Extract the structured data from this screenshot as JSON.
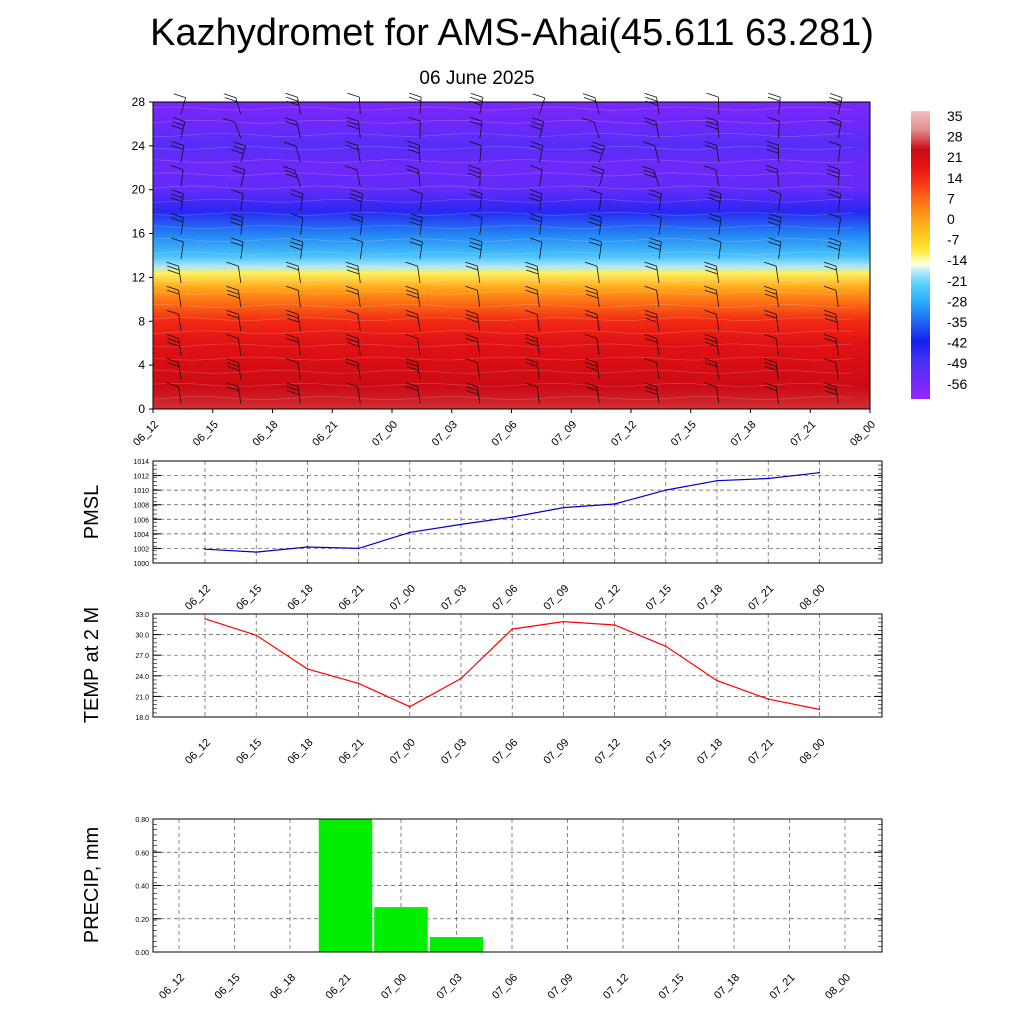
{
  "title": "Kazhydromet for AMS-Ahai(45.611 63.281)",
  "subtitle": "06 June 2025",
  "time_labels": [
    "06_12",
    "06_15",
    "06_18",
    "06_21",
    "07_00",
    "07_03",
    "07_06",
    "07_09",
    "07_12",
    "07_15",
    "07_18",
    "07_21",
    "08_00"
  ],
  "chart_data": [
    {
      "type": "heatmap",
      "title": "",
      "xlabel": "",
      "ylabel": "",
      "y_ticks": [
        0,
        4,
        8,
        12,
        16,
        20,
        24,
        28
      ],
      "ylim": [
        0,
        28
      ],
      "colorbar_labels": [
        35,
        28,
        21,
        14,
        7,
        0,
        -7,
        -14,
        -21,
        -28,
        -35,
        -42,
        -49,
        -56
      ],
      "colorbar_range": [
        -63,
        42
      ],
      "temperature_profile": [
        {
          "y": 0,
          "t": 30
        },
        {
          "y": 2,
          "t": 27
        },
        {
          "y": 4,
          "t": 25
        },
        {
          "y": 6,
          "t": 23
        },
        {
          "y": 8,
          "t": 18
        },
        {
          "y": 10,
          "t": 8
        },
        {
          "y": 11,
          "t": 2
        },
        {
          "y": 12.4,
          "t": -10
        },
        {
          "y": 13,
          "t": -17
        },
        {
          "y": 14,
          "t": -24
        },
        {
          "y": 16,
          "t": -32
        },
        {
          "y": 18,
          "t": -45
        },
        {
          "y": 20,
          "t": -54
        },
        {
          "y": 22,
          "t": -56
        },
        {
          "y": 24,
          "t": -52
        },
        {
          "y": 26,
          "t": -56
        },
        {
          "y": 28,
          "t": -58
        }
      ],
      "grid": false,
      "wind_barbs": true
    },
    {
      "type": "line",
      "ylabel": "PMSL",
      "y_ticks": [
        1000,
        1002,
        1004,
        1006,
        1008,
        1010,
        1012,
        1014
      ],
      "ylim": [
        1000,
        1014
      ],
      "categories": [
        "06_12",
        "06_15",
        "06_18",
        "06_21",
        "07_00",
        "07_03",
        "07_06",
        "07_09",
        "07_12",
        "07_15",
        "07_18",
        "07_21",
        "08_00"
      ],
      "values": [
        1001.9,
        1001.5,
        1002.2,
        1002.0,
        1004.2,
        1005.3,
        1006.3,
        1007.6,
        1008.1,
        1010.0,
        1011.3,
        1011.6,
        1012.4
      ],
      "color": "#0000cc",
      "grid": true
    },
    {
      "type": "line",
      "ylabel": "TEMP at 2 M",
      "y_ticks": [
        "18.0",
        "21.0",
        "24.0",
        "27.0",
        "30.0",
        "33.0"
      ],
      "ylim": [
        18,
        33
      ],
      "categories": [
        "06_12",
        "06_15",
        "06_18",
        "06_21",
        "07_00",
        "07_03",
        "07_06",
        "07_09",
        "07_12",
        "07_15",
        "07_18",
        "07_21",
        "08_00"
      ],
      "values": [
        32.3,
        29.9,
        25.0,
        22.9,
        19.5,
        23.6,
        30.8,
        31.9,
        31.4,
        28.3,
        23.3,
        20.6,
        19.1
      ],
      "color": "#ff0000",
      "grid": true
    },
    {
      "type": "bar",
      "ylabel": "PRECIP, mm",
      "y_ticks": [
        "0.00",
        "0.20",
        "0.40",
        "0.60",
        "0.80"
      ],
      "ylim": [
        0,
        0.8
      ],
      "categories": [
        "06_12",
        "06_15",
        "06_18",
        "06_21",
        "07_00",
        "07_03",
        "07_06",
        "07_09",
        "07_12",
        "07_15",
        "07_18",
        "07_21",
        "08_00"
      ],
      "values": [
        0,
        0,
        0,
        0.8,
        0.27,
        0.09,
        0,
        0,
        0,
        0,
        0,
        0,
        0
      ],
      "color": "#00ee00",
      "grid": true
    }
  ]
}
